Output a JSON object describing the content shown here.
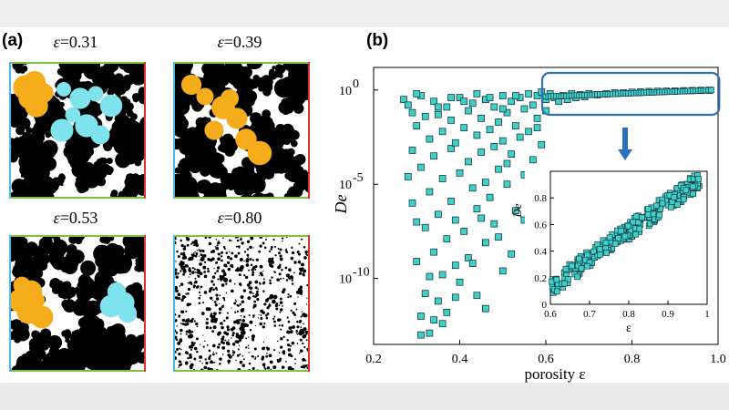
{
  "panel_a": {
    "label": "(a)",
    "panels": [
      {
        "eps": "=0.31",
        "density": 0.69,
        "cyan": true,
        "orange": true
      },
      {
        "eps": "=0.39",
        "density": 0.61,
        "cyan": false,
        "orange": true
      },
      {
        "eps": "=0.53",
        "density": 0.47,
        "cyan": true,
        "orange": true
      },
      {
        "eps": "=0.80",
        "density": 0.2,
        "cyan": false,
        "orange": false
      }
    ],
    "eps_symbol": "ε",
    "border_colors": {
      "top": "#7cc242",
      "left": "#4fb8e8",
      "right": "#e0302a",
      "bottom": "#7cc242"
    },
    "cluster_colors": {
      "orange": "#f5ad1c",
      "cyan": "#7fe3ee"
    }
  },
  "panel_b": {
    "label": "(b)"
  },
  "chart_data": [
    {
      "type": "scatter",
      "xlabel": "porosity ε",
      "ylabel": "De",
      "xlim": [
        0.2,
        1.0
      ],
      "ylim_log10": [
        -13.5,
        1.2
      ],
      "yscale": "log",
      "x_ticks": [
        "0.2",
        "0.4",
        "0.6",
        "0.8",
        "1.0"
      ],
      "x_tick_values": [
        0.2,
        0.4,
        0.6,
        0.8,
        1.0
      ],
      "y_ticks": [
        "10",
        "10",
        "10"
      ],
      "y_tick_exponents": [
        "0",
        "-5",
        "-10"
      ],
      "y_tick_log_values": [
        0,
        -5,
        -10
      ],
      "marker_color": "#3ed1c8",
      "highlight_box_color": "#2f6fb3",
      "arrow_color": "#2a6fc0",
      "points": [
        [
          0.27,
          -0.5
        ],
        [
          0.28,
          -0.8
        ],
        [
          0.29,
          -1.2
        ],
        [
          0.29,
          -6.0
        ],
        [
          0.3,
          -1.9
        ],
        [
          0.3,
          -9.1
        ],
        [
          0.31,
          -12.0
        ],
        [
          0.31,
          -0.3
        ],
        [
          0.31,
          -4.1
        ],
        [
          0.32,
          -7.3
        ],
        [
          0.32,
          -10.8
        ],
        [
          0.33,
          -2.6
        ],
        [
          0.33,
          -5.4
        ],
        [
          0.33,
          -12.9
        ],
        [
          0.34,
          -0.6
        ],
        [
          0.34,
          -3.5
        ],
        [
          0.34,
          -8.6
        ],
        [
          0.35,
          -11.2
        ],
        [
          0.35,
          -1.3
        ],
        [
          0.35,
          -6.6
        ],
        [
          0.36,
          -2.2
        ],
        [
          0.36,
          -9.8
        ],
        [
          0.36,
          -4.7
        ],
        [
          0.37,
          -0.9
        ],
        [
          0.37,
          -7.9
        ],
        [
          0.37,
          -11.8
        ],
        [
          0.38,
          -3.1
        ],
        [
          0.38,
          -5.9
        ],
        [
          0.38,
          -1.6
        ],
        [
          0.39,
          -9.3
        ],
        [
          0.39,
          -2.8
        ],
        [
          0.39,
          -6.9
        ],
        [
          0.4,
          -0.4
        ],
        [
          0.4,
          -4.4
        ],
        [
          0.4,
          -10.2
        ],
        [
          0.41,
          -2.0
        ],
        [
          0.41,
          -7.5
        ],
        [
          0.42,
          -1.1
        ],
        [
          0.42,
          -3.8
        ],
        [
          0.42,
          -8.9
        ],
        [
          0.43,
          -5.2
        ],
        [
          0.43,
          -0.7
        ],
        [
          0.44,
          -2.4
        ],
        [
          0.44,
          -6.3
        ],
        [
          0.44,
          -10.9
        ],
        [
          0.45,
          -1.5
        ],
        [
          0.45,
          -3.3
        ],
        [
          0.46,
          -0.5
        ],
        [
          0.46,
          -4.9
        ],
        [
          0.46,
          -8.1
        ],
        [
          0.47,
          -2.1
        ],
        [
          0.47,
          -5.7
        ],
        [
          0.48,
          -0.9
        ],
        [
          0.48,
          -3.0
        ],
        [
          0.48,
          -7.1
        ],
        [
          0.49,
          -1.7
        ],
        [
          0.49,
          -4.2
        ],
        [
          0.5,
          -0.3
        ],
        [
          0.5,
          -2.7
        ],
        [
          0.5,
          -9.6
        ],
        [
          0.51,
          -1.2
        ],
        [
          0.51,
          -5.0
        ],
        [
          0.52,
          -0.6
        ],
        [
          0.52,
          -3.4
        ],
        [
          0.53,
          -1.9
        ],
        [
          0.53,
          -6.4
        ],
        [
          0.54,
          -0.4
        ],
        [
          0.54,
          -2.5
        ],
        [
          0.55,
          -1.0
        ],
        [
          0.55,
          -4.5
        ],
        [
          0.56,
          -0.2
        ],
        [
          0.56,
          -2.2
        ],
        [
          0.57,
          -0.8
        ],
        [
          0.57,
          -3.7
        ],
        [
          0.58,
          -0.3
        ],
        [
          0.58,
          -1.5
        ],
        [
          0.59,
          -0.1
        ],
        [
          0.59,
          -2.9
        ],
        [
          0.6,
          -0.5
        ],
        [
          0.6,
          -1.1
        ],
        [
          0.61,
          -0.2
        ],
        [
          0.62,
          -0.4
        ],
        [
          0.63,
          -0.6
        ],
        [
          0.64,
          -0.3
        ],
        [
          0.65,
          -0.5
        ],
        [
          0.66,
          -0.2
        ],
        [
          0.67,
          -0.4
        ],
        [
          0.68,
          -0.25
        ],
        [
          0.69,
          -0.35
        ],
        [
          0.7,
          -0.2
        ],
        [
          0.72,
          -0.25
        ],
        [
          0.74,
          -0.2
        ],
        [
          0.76,
          -0.15
        ],
        [
          0.78,
          -0.15
        ],
        [
          0.8,
          -0.12
        ],
        [
          0.82,
          -0.1
        ],
        [
          0.84,
          -0.08
        ],
        [
          0.86,
          -0.07
        ],
        [
          0.88,
          -0.06
        ],
        [
          0.9,
          -0.05
        ],
        [
          0.92,
          -0.04
        ],
        [
          0.94,
          -0.03
        ],
        [
          0.96,
          -0.02
        ],
        [
          0.98,
          -0.01
        ],
        [
          0.3,
          -0.2
        ],
        [
          0.32,
          -1.4
        ],
        [
          0.35,
          -0.9
        ],
        [
          0.38,
          -0.4
        ],
        [
          0.41,
          -0.6
        ],
        [
          0.44,
          -0.2
        ],
        [
          0.47,
          -0.4
        ],
        [
          0.5,
          -1.0
        ],
        [
          0.53,
          -0.3
        ],
        [
          0.29,
          -3.2
        ],
        [
          0.33,
          -9.9
        ],
        [
          0.36,
          -12.4
        ],
        [
          0.39,
          -11.0
        ],
        [
          0.43,
          -9.2
        ],
        [
          0.46,
          -11.6
        ],
        [
          0.49,
          -7.8
        ],
        [
          0.52,
          -8.7
        ],
        [
          0.55,
          -6.9
        ],
        [
          0.57,
          -5.5
        ],
        [
          0.31,
          -13.0
        ],
        [
          0.34,
          -12.2
        ],
        [
          0.28,
          -4.6
        ],
        [
          0.3,
          -7.0
        ],
        [
          0.45,
          -6.8
        ],
        [
          0.51,
          -3.9
        ],
        [
          0.56,
          -4.2
        ],
        [
          0.58,
          -2.0
        ]
      ]
    },
    {
      "type": "scatter",
      "xlabel": "ε",
      "ylabel": "De",
      "xlim": [
        0.6,
        1.0
      ],
      "ylim": [
        0,
        1.0
      ],
      "x_ticks": [
        "0.6",
        "0.7",
        "0.8",
        "0.9",
        "1"
      ],
      "x_tick_values": [
        0.6,
        0.7,
        0.8,
        0.9,
        1.0
      ],
      "y_ticks": [
        "0",
        "0.2",
        "0.4",
        "0.6",
        "0.8"
      ],
      "y_tick_values": [
        0,
        0.2,
        0.4,
        0.6,
        0.8
      ],
      "trend": {
        "x": [
          0.6,
          0.98
        ],
        "y": [
          0.13,
          0.93
        ],
        "spread": 0.07
      }
    }
  ]
}
